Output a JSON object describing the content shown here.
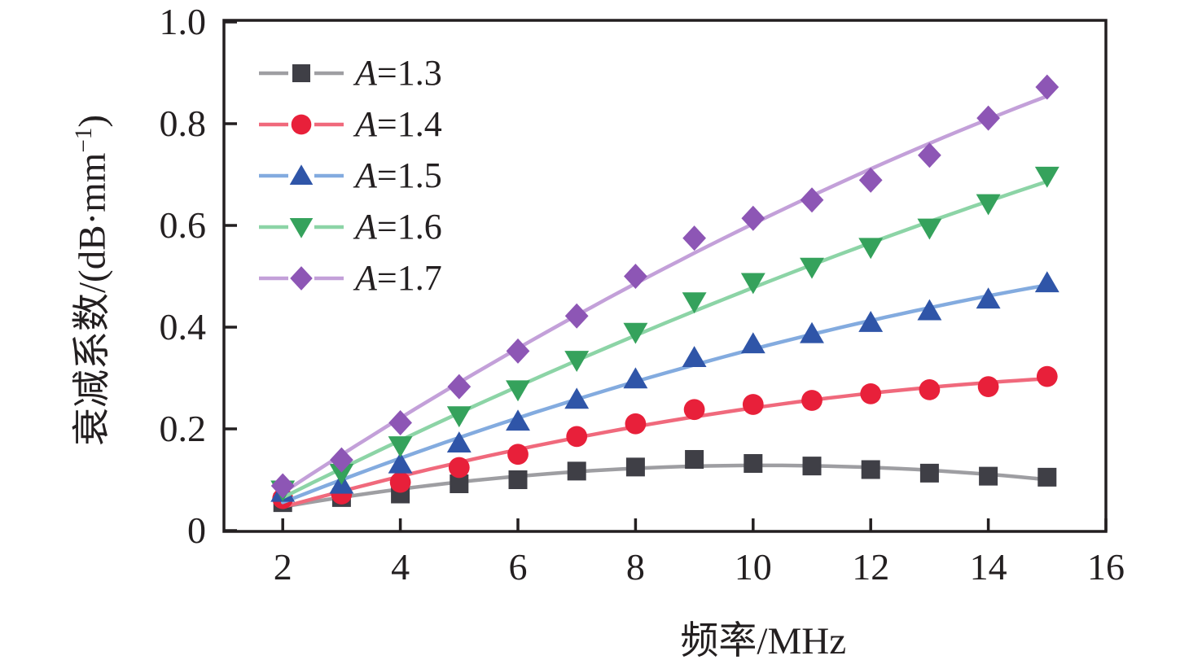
{
  "chart_data": {
    "type": "line",
    "title": "",
    "xlabel": "频率/MHz",
    "ylabel": "衰减系数/(dB·mm⁻¹)",
    "ylabel_parts": {
      "base": "衰减系数/(dB·mm",
      "sup": "−1",
      "close": ")"
    },
    "x": [
      2,
      3,
      4,
      5,
      6,
      7,
      8,
      9,
      10,
      11,
      12,
      13,
      14,
      15
    ],
    "xlim": [
      1,
      16
    ],
    "ylim": [
      0,
      1.0
    ],
    "xticks": [
      2,
      4,
      6,
      8,
      10,
      12,
      14,
      16
    ],
    "xtick_labels": [
      "2",
      "4",
      "6",
      "8",
      "10",
      "12",
      "14",
      "16"
    ],
    "yticks": [
      0,
      0.2,
      0.4,
      0.6,
      0.8,
      1.0
    ],
    "ytick_labels": [
      "0",
      "0.2",
      "0.4",
      "0.6",
      "0.8",
      "1.0"
    ],
    "grid": false,
    "legend_position": "upper-left",
    "frame_color": "#231f20",
    "fit_note": "smooth quadratic fit lines through scatter markers",
    "series": [
      {
        "label": "A=1.3",
        "marker": "square",
        "line_color": "#9e9ea2",
        "marker_color": "#3f3f46",
        "values": [
          0.055,
          0.065,
          0.072,
          0.092,
          0.1,
          0.117,
          0.125,
          0.14,
          0.132,
          0.127,
          0.12,
          0.113,
          0.107,
          0.105
        ]
      },
      {
        "label": "A=1.4",
        "marker": "circle",
        "line_color": "#f0697c",
        "marker_color": "#e8203a",
        "values": [
          0.063,
          0.072,
          0.095,
          0.124,
          0.15,
          0.185,
          0.21,
          0.238,
          0.248,
          0.256,
          0.269,
          0.277,
          0.283,
          0.303
        ]
      },
      {
        "label": "A=1.5",
        "marker": "triangle-up",
        "line_color": "#83abdf",
        "marker_color": "#2f55a8",
        "values": [
          0.075,
          0.091,
          0.131,
          0.172,
          0.215,
          0.258,
          0.298,
          0.34,
          0.367,
          0.387,
          0.409,
          0.432,
          0.455,
          0.487
        ]
      },
      {
        "label": "A=1.6",
        "marker": "triangle-down",
        "line_color": "#8cd4a6",
        "marker_color": "#35a25c",
        "values": [
          0.08,
          0.113,
          0.167,
          0.226,
          0.277,
          0.335,
          0.39,
          0.45,
          0.488,
          0.518,
          0.557,
          0.595,
          0.643,
          0.697
        ]
      },
      {
        "label": "A=1.7",
        "marker": "diamond",
        "line_color": "#c3a0d9",
        "marker_color": "#8d56b5",
        "values": [
          0.088,
          0.139,
          0.212,
          0.283,
          0.353,
          0.422,
          0.5,
          0.575,
          0.614,
          0.65,
          0.689,
          0.738,
          0.811,
          0.872
        ]
      }
    ]
  }
}
